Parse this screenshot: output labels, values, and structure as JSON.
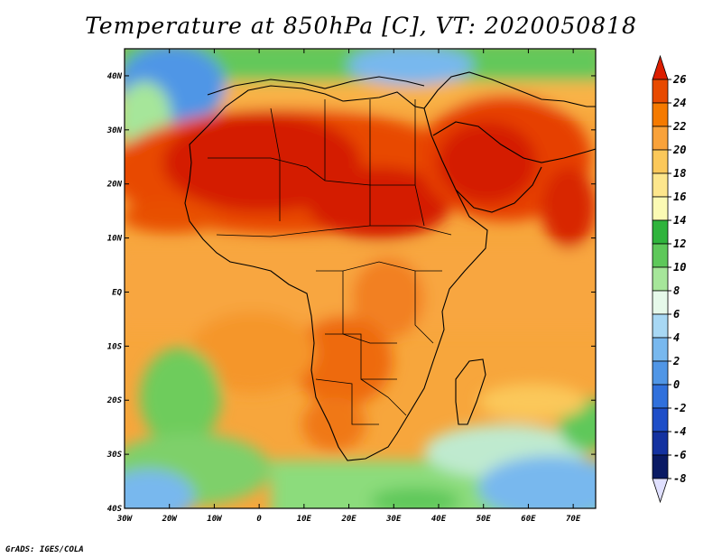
{
  "title": "Temperature at 850hPa [C], VT: 2020050818",
  "credit": "GrADS: IGES/COLA",
  "map": {
    "variable": "Temperature at 850hPa",
    "units": "C",
    "valid_time": "2020050818",
    "region": "Africa",
    "lon_range": [
      -30,
      75
    ],
    "lat_range": [
      -40,
      45
    ],
    "lon_labels": [
      "30W",
      "20W",
      "10W",
      "0",
      "10E",
      "20E",
      "30E",
      "40E",
      "50E",
      "60E",
      "70E"
    ],
    "lat_labels": [
      "40N",
      "30N",
      "20N",
      "10N",
      "EQ",
      "10S",
      "20S",
      "30S",
      "40S"
    ]
  },
  "colorbar": {
    "labels": [
      "26",
      "24",
      "22",
      "20",
      "18",
      "16",
      "14",
      "12",
      "10",
      "8",
      "6",
      "4",
      "2",
      "0",
      "-2",
      "-4",
      "-6",
      "-8"
    ],
    "colors": [
      "#dc1e00",
      "#e84a00",
      "#f57a00",
      "#f9a23a",
      "#fbc85a",
      "#fde68c",
      "#fbfab4",
      "#2fb43c",
      "#5ec85a",
      "#a6e69a",
      "#e6f9ea",
      "#a8d8f4",
      "#78b8ee",
      "#5096e6",
      "#3070dc",
      "#1e4ec8",
      "#1432a0",
      "#0a1a64",
      "#e0e0ff"
    ]
  }
}
